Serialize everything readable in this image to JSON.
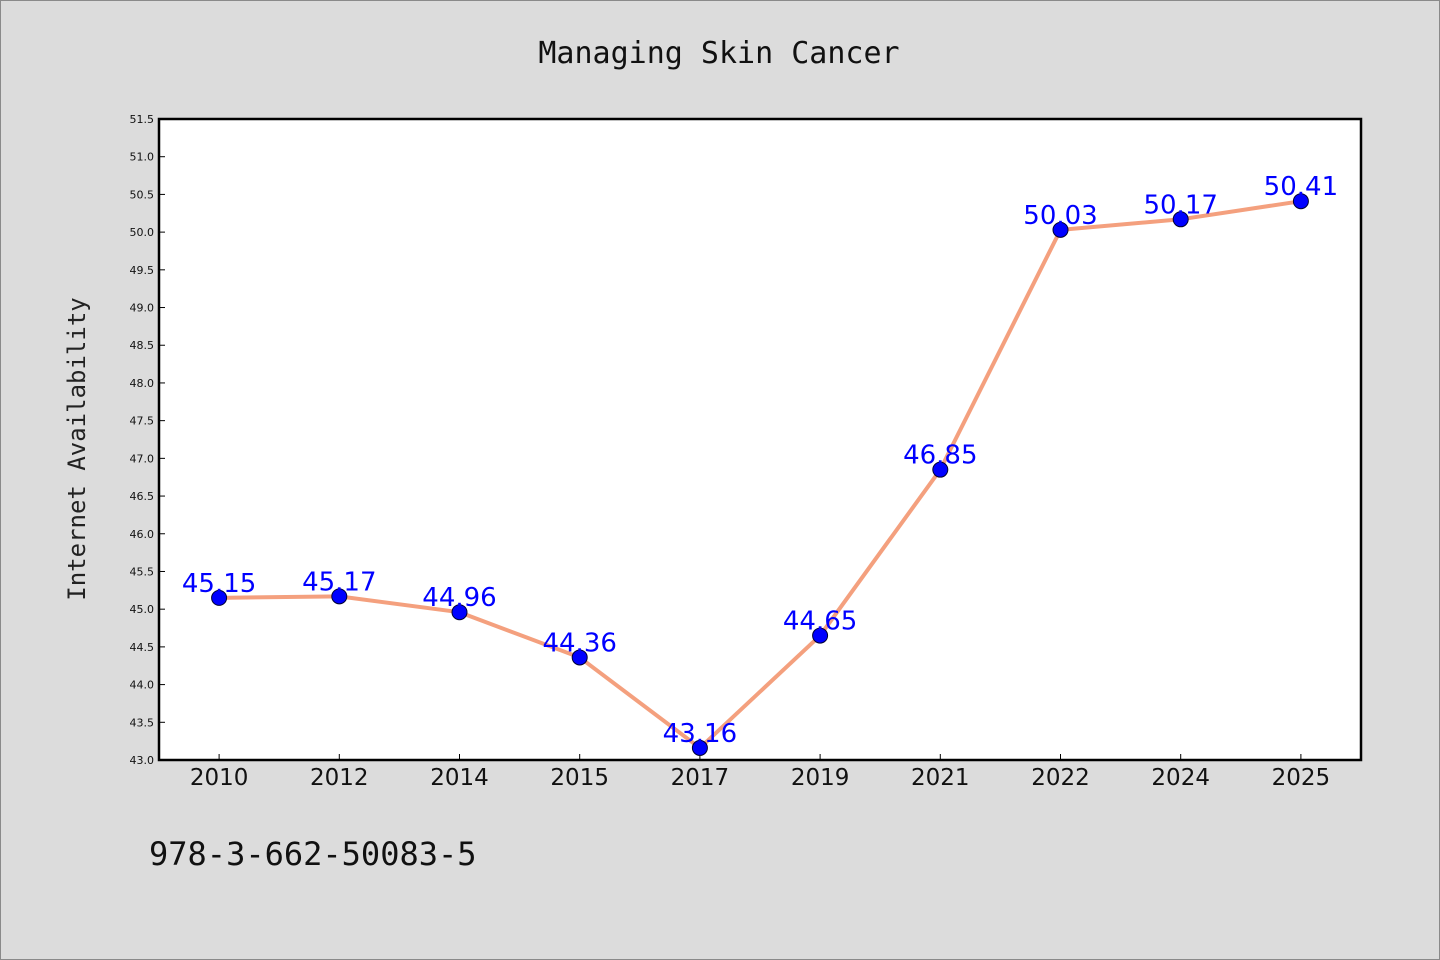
{
  "footer": {
    "isbn": "978-3-662-50083-5"
  },
  "chart_data": {
    "type": "line",
    "title": "Managing Skin Cancer",
    "xlabel": "",
    "ylabel": "Internet Availability",
    "categories": [
      "2010",
      "2012",
      "2014",
      "2015",
      "2017",
      "2019",
      "2021",
      "2022",
      "2024",
      "2025"
    ],
    "series": [
      {
        "values": [
          45.15,
          45.17,
          44.96,
          44.36,
          43.16,
          44.65,
          46.85,
          50.03,
          50.17,
          50.41
        ],
        "data_labels": [
          "45.15",
          "45.17",
          "44.96",
          "44.36",
          "43.16",
          "44.65",
          "46.85",
          "50.03",
          "50.17",
          "50.41"
        ],
        "line_color": "#f4a07e",
        "marker_color": "#0000ff"
      }
    ],
    "ylim": [
      43.0,
      51.5
    ],
    "yticks": [
      "43.0",
      "43.5",
      "44.0",
      "44.5",
      "45.0",
      "45.5",
      "46.0",
      "46.5",
      "47.0",
      "47.5",
      "48.0",
      "48.5",
      "49.0",
      "49.5",
      "50.0",
      "50.5",
      "51.0",
      "51.5"
    ],
    "grid": false,
    "legend": "none",
    "background": "#dcdcdc",
    "plot_background": "#ffffff"
  }
}
